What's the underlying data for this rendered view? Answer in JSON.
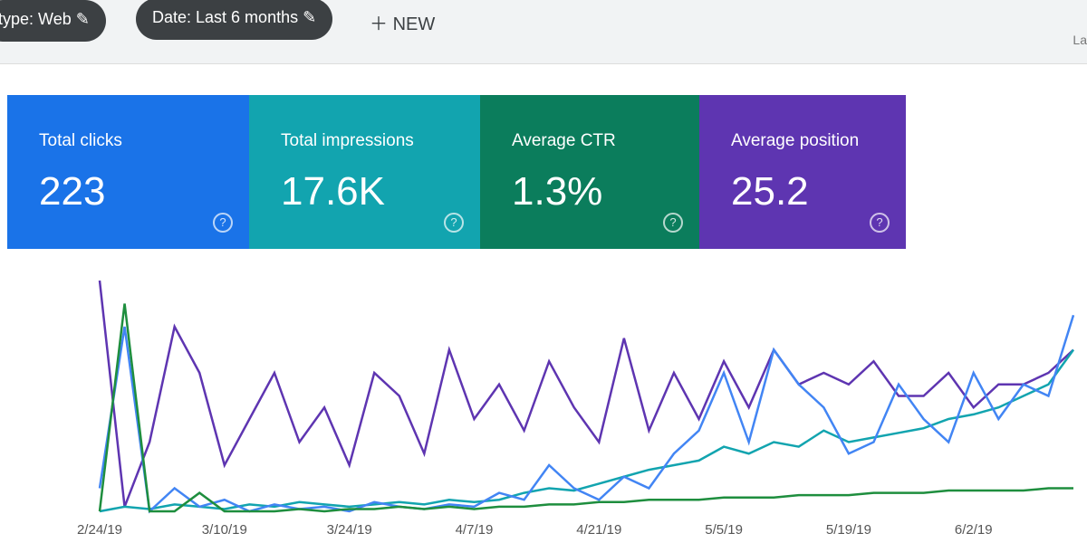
{
  "toolbar": {
    "filters": [
      "type: Web",
      "Date: Last 6 months"
    ],
    "new_button": "NEW",
    "corner_text": "La"
  },
  "cards": [
    {
      "label": "Total clicks",
      "value": "223",
      "color": "#1a73e8"
    },
    {
      "label": "Total impressions",
      "value": "17.6K",
      "color": "#12a4af"
    },
    {
      "label": "Average CTR",
      "value": "1.3%",
      "color": "#0b7d5c"
    },
    {
      "label": "Average position",
      "value": "25.2",
      "color": "#5e35b1"
    }
  ],
  "chart_data": {
    "type": "line",
    "categories": [
      "2/24/19",
      null,
      null,
      null,
      null,
      "3/10/19",
      null,
      null,
      null,
      null,
      "3/24/19",
      null,
      null,
      null,
      null,
      "4/7/19",
      null,
      null,
      null,
      null,
      "4/21/19",
      null,
      null,
      null,
      null,
      "5/5/19",
      null,
      null,
      null,
      null,
      "5/19/19",
      null,
      null,
      null,
      null,
      "6/2/19",
      null,
      null,
      null,
      null
    ],
    "series": [
      {
        "color": "#5e35b1",
        "values": [
          100,
          2,
          30,
          80,
          60,
          20,
          40,
          60,
          30,
          45,
          20,
          60,
          50,
          25,
          70,
          40,
          55,
          35,
          65,
          45,
          30,
          75,
          35,
          60,
          40,
          65,
          45,
          70,
          55,
          60,
          55,
          65,
          50,
          50,
          60,
          45,
          55,
          55,
          60,
          70
        ]
      },
      {
        "color": "#12a4af",
        "values": [
          0,
          2,
          1,
          3,
          2,
          1,
          3,
          2,
          4,
          3,
          2,
          3,
          4,
          3,
          5,
          4,
          5,
          8,
          10,
          9,
          12,
          15,
          18,
          20,
          22,
          28,
          25,
          30,
          28,
          35,
          30,
          32,
          34,
          36,
          40,
          42,
          45,
          50,
          55,
          70
        ]
      },
      {
        "color": "#4285f4",
        "values": [
          10,
          80,
          0,
          10,
          2,
          5,
          0,
          3,
          1,
          2,
          0,
          4,
          2,
          1,
          3,
          2,
          8,
          5,
          20,
          10,
          5,
          15,
          10,
          25,
          35,
          60,
          30,
          70,
          55,
          45,
          25,
          30,
          55,
          40,
          30,
          60,
          40,
          55,
          50,
          85
        ]
      },
      {
        "color": "#1e8e3e",
        "values": [
          0,
          90,
          0,
          0,
          8,
          0,
          0,
          0,
          1,
          0,
          1,
          1,
          2,
          1,
          2,
          1,
          2,
          2,
          3,
          3,
          4,
          4,
          5,
          5,
          5,
          6,
          6,
          6,
          7,
          7,
          7,
          8,
          8,
          8,
          9,
          9,
          9,
          9,
          10,
          10
        ]
      }
    ]
  }
}
